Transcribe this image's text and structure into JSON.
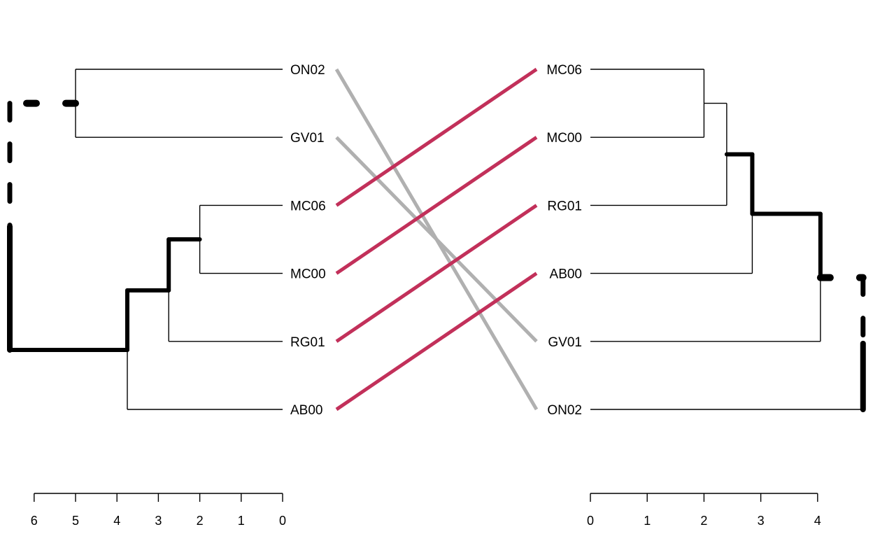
{
  "chart_data": {
    "type": "tanglegram",
    "title": "",
    "colors": {
      "branch": "#000000",
      "connector_matched": "#C2305A",
      "connector_unmatched": "#B0B0B0",
      "axis": "#000000"
    },
    "left_dendrogram": {
      "labels": [
        "ON02",
        "GV01",
        "MC06",
        "MC00",
        "RG01",
        "AB00"
      ],
      "axis": {
        "ticks": [
          6,
          5,
          4,
          3,
          2,
          1,
          0
        ],
        "range": [
          6,
          0
        ]
      },
      "merges": [
        {
          "node": "n1",
          "children": [
            "ON02",
            "GV01"
          ],
          "height": 5.0,
          "highlight": false
        },
        {
          "node": "n2",
          "children": [
            "MC06",
            "MC00"
          ],
          "height": 2.0,
          "highlight": true
        },
        {
          "node": "n3",
          "children": [
            "n2",
            "RG01"
          ],
          "height": 2.75,
          "highlight": true
        },
        {
          "node": "n4",
          "children": [
            "n3",
            "AB00"
          ],
          "height": 3.75,
          "highlight": true
        },
        {
          "node": "root",
          "children": [
            "n1",
            "n4"
          ],
          "height": 6.6,
          "highlight": true,
          "dashed_to": "n1"
        }
      ]
    },
    "right_dendrogram": {
      "labels": [
        "MC06",
        "MC00",
        "RG01",
        "AB00",
        "GV01",
        "ON02"
      ],
      "axis": {
        "ticks": [
          0,
          1,
          2,
          3,
          4
        ],
        "range": [
          0,
          4
        ]
      },
      "merges": [
        {
          "node": "m1",
          "children": [
            "MC06",
            "MC00"
          ],
          "height": 2.0,
          "highlight": false
        },
        {
          "node": "m2",
          "children": [
            "m1",
            "RG01"
          ],
          "height": 2.4,
          "highlight": true
        },
        {
          "node": "m3",
          "children": [
            "m2",
            "AB00"
          ],
          "height": 2.85,
          "highlight": true
        },
        {
          "node": "m4",
          "children": [
            "m3",
            "GV01"
          ],
          "height": 4.05,
          "highlight": true
        },
        {
          "node": "root",
          "children": [
            "m4",
            "ON02"
          ],
          "height": 4.8,
          "highlight": true,
          "dashed_to": "m4"
        }
      ]
    },
    "connections": [
      {
        "from": "ON02",
        "to": "ON02",
        "matched": false
      },
      {
        "from": "GV01",
        "to": "GV01",
        "matched": false
      },
      {
        "from": "MC06",
        "to": "MC06",
        "matched": true
      },
      {
        "from": "MC00",
        "to": "MC00",
        "matched": true
      },
      {
        "from": "RG01",
        "to": "RG01",
        "matched": true
      },
      {
        "from": "AB00",
        "to": "AB00",
        "matched": true
      }
    ]
  }
}
